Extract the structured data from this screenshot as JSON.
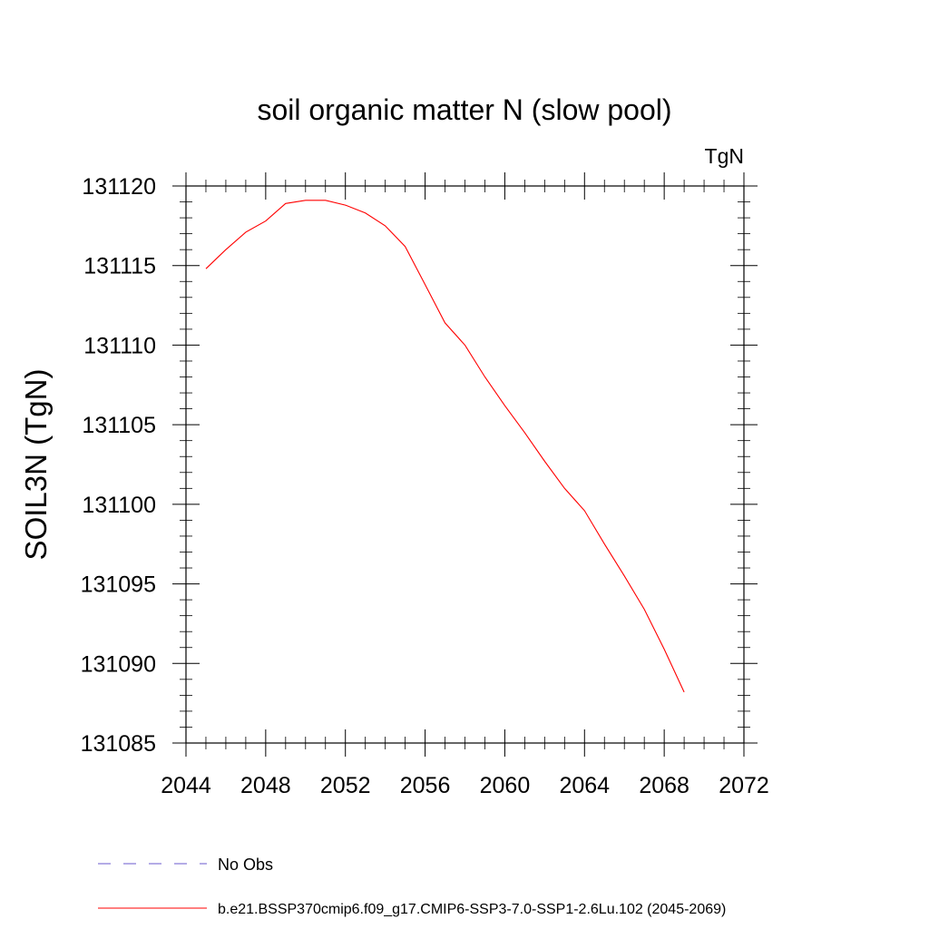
{
  "chart_data": {
    "type": "line",
    "title": "soil organic matter N (slow pool)",
    "units_label": "TgN",
    "ylabel": "SOIL3N  (TgN)",
    "xlabel": "",
    "xlim": [
      2044,
      2072
    ],
    "ylim": [
      131085,
      131120
    ],
    "x_ticks": [
      2044,
      2048,
      2052,
      2056,
      2060,
      2064,
      2068,
      2072
    ],
    "y_ticks": [
      131085,
      131090,
      131095,
      131100,
      131105,
      131110,
      131115,
      131120
    ],
    "grid": false,
    "legend_position": "bottom-left",
    "series": [
      {
        "name": "b.e21.BSSP370cmip6.f09_g17.CMIP6-SSP3-7.0-SSP1-2.6Lu.102 (2045-2069)",
        "color": "#ff0000",
        "style": "solid",
        "x": [
          2045,
          2046,
          2047,
          2048,
          2049,
          2050,
          2051,
          2052,
          2053,
          2054,
          2055,
          2056,
          2057,
          2058,
          2059,
          2060,
          2061,
          2062,
          2063,
          2064,
          2065,
          2066,
          2067,
          2068,
          2069
        ],
        "y": [
          131114.8,
          131116.0,
          131117.1,
          131117.8,
          131118.9,
          131119.1,
          131119.1,
          131118.8,
          131118.3,
          131117.5,
          131116.2,
          131113.8,
          131111.4,
          131110.0,
          131108.0,
          131106.2,
          131104.5,
          131102.7,
          131101.0,
          131099.6,
          131097.5,
          131095.5,
          131093.4,
          131090.9,
          131088.2
        ]
      }
    ],
    "legend": [
      {
        "label": "No Obs",
        "color": "#6a5acd",
        "style": "dashed"
      },
      {
        "label": "b.e21.BSSP370cmip6.f09_g17.CMIP6-SSP3-7.0-SSP1-2.6Lu.102 (2045-2069)",
        "color": "#ff0000",
        "style": "solid"
      }
    ]
  }
}
